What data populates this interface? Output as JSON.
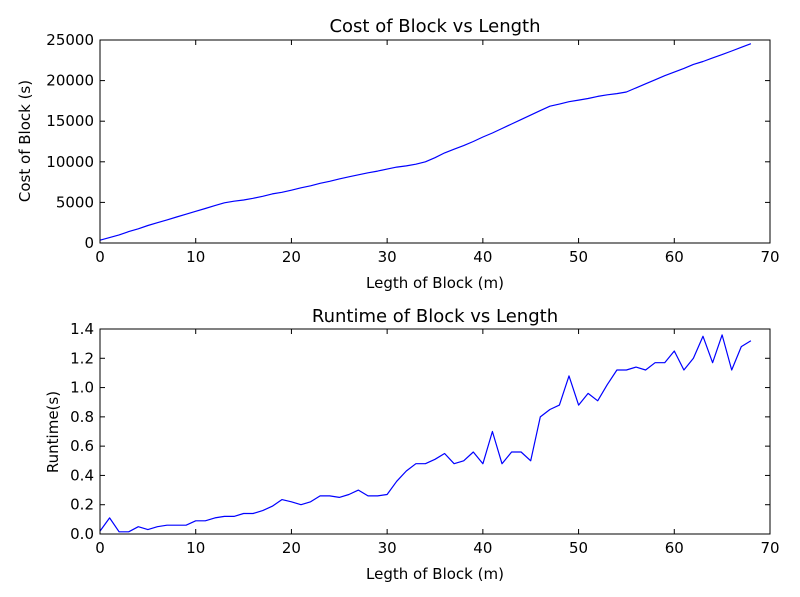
{
  "chart_data": [
    {
      "type": "line",
      "title": "Cost of Block vs Length",
      "xlabel": "Legth of Block (m)",
      "ylabel": "Cost of Block (s)",
      "xlim": [
        0,
        70
      ],
      "ylim": [
        0,
        25000
      ],
      "xticks": [
        "0",
        "10",
        "20",
        "30",
        "40",
        "50",
        "60",
        "70"
      ],
      "yticks": [
        "0",
        "5000",
        "10000",
        "15000",
        "20000",
        "25000"
      ],
      "grid": false,
      "series": [
        {
          "color": "#0000ff",
          "x": [
            0,
            2,
            3,
            4,
            5,
            6,
            7,
            8,
            9,
            10,
            11,
            12,
            13,
            14,
            15,
            16,
            17,
            18,
            19,
            20,
            21,
            22,
            23,
            24,
            25,
            26,
            27,
            28,
            29,
            30,
            31,
            32,
            33,
            34,
            35,
            36,
            37,
            38,
            39,
            40,
            41,
            42,
            43,
            44,
            45,
            46,
            47,
            48,
            49,
            50,
            51,
            52,
            53,
            54,
            55,
            56,
            57,
            58,
            59,
            60,
            61,
            62,
            63,
            64,
            65,
            66,
            67,
            68
          ],
          "y": [
            350,
            1000,
            1400,
            1750,
            2150,
            2500,
            2850,
            3200,
            3550,
            3900,
            4250,
            4600,
            4950,
            5150,
            5300,
            5500,
            5750,
            6050,
            6250,
            6500,
            6800,
            7050,
            7350,
            7600,
            7900,
            8150,
            8400,
            8650,
            8850,
            9100,
            9350,
            9500,
            9700,
            10000,
            10500,
            11100,
            11550,
            12000,
            12500,
            13050,
            13550,
            14100,
            14650,
            15200,
            15750,
            16300,
            16850,
            17100,
            17400,
            17600,
            17800,
            18050,
            18250,
            18400,
            18600,
            19100,
            19600,
            20100,
            20600,
            21050,
            21500,
            22000,
            22350,
            22800,
            23200,
            23650,
            24100,
            24550
          ]
        }
      ]
    },
    {
      "type": "line",
      "title": "Runtime of Block vs Length",
      "xlabel": "Legth of Block (m)",
      "ylabel": "Runtime(s)",
      "xlim": [
        0,
        70
      ],
      "ylim": [
        0,
        1.4
      ],
      "xticks": [
        "0",
        "10",
        "20",
        "30",
        "40",
        "50",
        "60",
        "70"
      ],
      "yticks": [
        "0.0",
        "0.2",
        "0.4",
        "0.6",
        "0.8",
        "1.0",
        "1.2",
        "1.4"
      ],
      "grid": false,
      "series": [
        {
          "color": "#0000ff",
          "x": [
            0,
            1,
            2,
            3,
            4,
            5,
            6,
            7,
            8,
            9,
            10,
            11,
            12,
            13,
            14,
            15,
            16,
            17,
            18,
            19,
            20,
            21,
            22,
            23,
            24,
            25,
            26,
            27,
            28,
            29,
            30,
            31,
            32,
            33,
            34,
            35,
            36,
            37,
            38,
            39,
            40,
            41,
            42,
            43,
            44,
            45,
            46,
            47,
            48,
            49,
            50,
            51,
            52,
            53,
            54,
            55,
            56,
            57,
            58,
            59,
            60,
            61,
            62,
            63,
            64,
            65,
            66,
            67,
            68
          ],
          "y": [
            0.02,
            0.11,
            0.015,
            0.015,
            0.05,
            0.03,
            0.05,
            0.06,
            0.06,
            0.06,
            0.09,
            0.09,
            0.11,
            0.12,
            0.12,
            0.14,
            0.14,
            0.16,
            0.19,
            0.235,
            0.22,
            0.2,
            0.22,
            0.26,
            0.26,
            0.25,
            0.27,
            0.3,
            0.26,
            0.26,
            0.27,
            0.36,
            0.43,
            0.48,
            0.48,
            0.51,
            0.55,
            0.48,
            0.5,
            0.56,
            0.48,
            0.7,
            0.48,
            0.56,
            0.56,
            0.5,
            0.8,
            0.85,
            0.88,
            1.08,
            0.88,
            0.96,
            0.91,
            1.02,
            1.12,
            1.12,
            1.14,
            1.12,
            1.17,
            1.17,
            1.25,
            1.12,
            1.2,
            1.35,
            1.17,
            1.36,
            1.12,
            1.28,
            1.32
          ]
        }
      ]
    }
  ]
}
